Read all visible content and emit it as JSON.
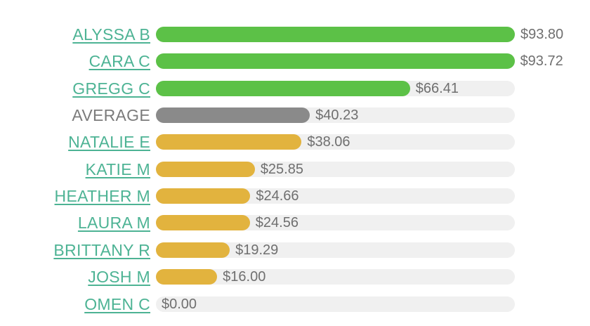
{
  "chart_data": {
    "type": "bar",
    "orientation": "horizontal",
    "xlim": [
      0,
      93.8
    ],
    "colors": {
      "top": "#5cc147",
      "average": "#8a8a8a",
      "below": "#e2b33e",
      "track": "#f0f0f0",
      "link_label": "#4db394",
      "plain_label": "#7b7b7b",
      "value_label": "#6f6f6f"
    },
    "bars": [
      {
        "name": "ALYSSA B",
        "value": 93.8,
        "label": "$93.80",
        "group": "top",
        "link": true
      },
      {
        "name": "CARA C",
        "value": 93.72,
        "label": "$93.72",
        "group": "top",
        "link": true
      },
      {
        "name": "GREGG C",
        "value": 66.41,
        "label": "$66.41",
        "group": "top",
        "link": true
      },
      {
        "name": "AVERAGE",
        "value": 40.23,
        "label": "$40.23",
        "group": "average",
        "link": false
      },
      {
        "name": "NATALIE E",
        "value": 38.06,
        "label": "$38.06",
        "group": "below",
        "link": true
      },
      {
        "name": "KATIE M",
        "value": 25.85,
        "label": "$25.85",
        "group": "below",
        "link": true
      },
      {
        "name": "HEATHER M",
        "value": 24.66,
        "label": "$24.66",
        "group": "below",
        "link": true
      },
      {
        "name": "LAURA M",
        "value": 24.56,
        "label": "$24.56",
        "group": "below",
        "link": true
      },
      {
        "name": "BRITTANY R",
        "value": 19.29,
        "label": "$19.29",
        "group": "below",
        "link": true
      },
      {
        "name": "JOSH M",
        "value": 16.0,
        "label": "$16.00",
        "group": "below",
        "link": true
      },
      {
        "name": "OMEN C",
        "value": 0.0,
        "label": "$0.00",
        "group": "below",
        "link": true
      }
    ]
  }
}
